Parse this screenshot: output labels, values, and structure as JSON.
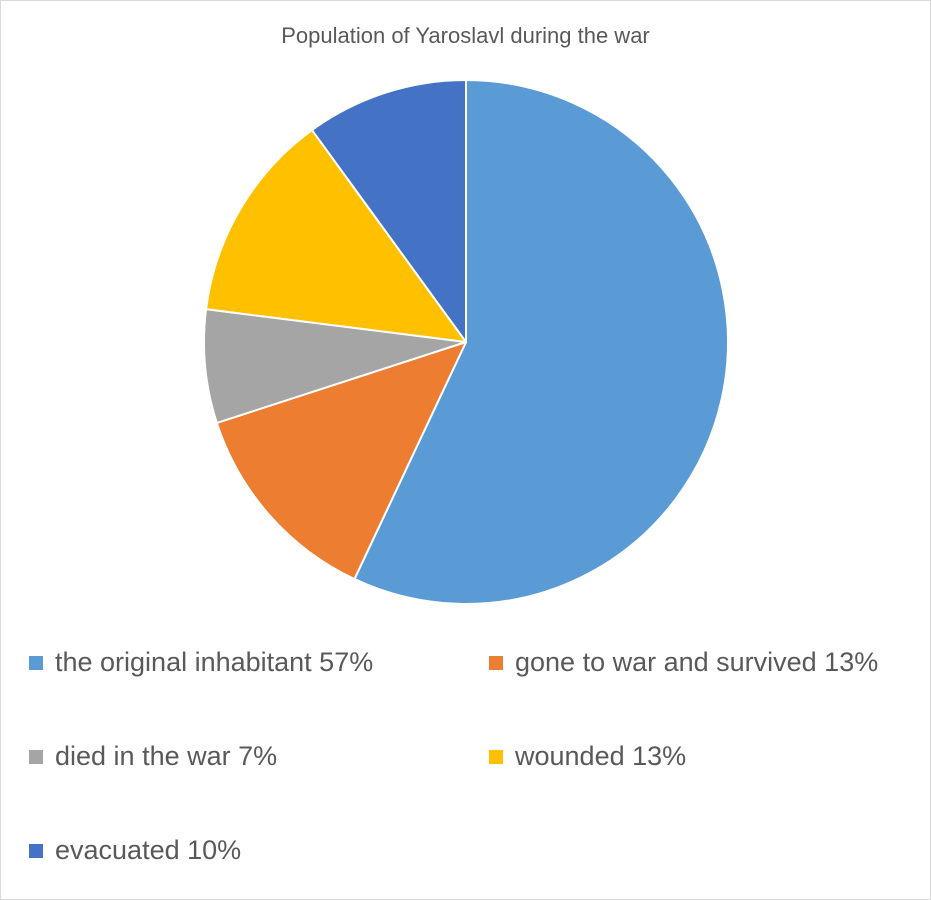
{
  "chart_data": {
    "type": "pie",
    "title": "Population of Yaroslavl during the war",
    "slices": [
      {
        "label": "the original inhabitant 57%",
        "value": 57,
        "color": "#5b9bd5"
      },
      {
        "label": "gone to war and survived 13%",
        "value": 13,
        "color": "#ed7d31"
      },
      {
        "label": "died in the war 7%",
        "value": 7,
        "color": "#a5a5a5"
      },
      {
        "label": "wounded 13%",
        "value": 13,
        "color": "#ffc000"
      },
      {
        "label": "evacuated 10%",
        "value": 10,
        "color": "#4472c4"
      }
    ],
    "legend_position": "bottom"
  }
}
